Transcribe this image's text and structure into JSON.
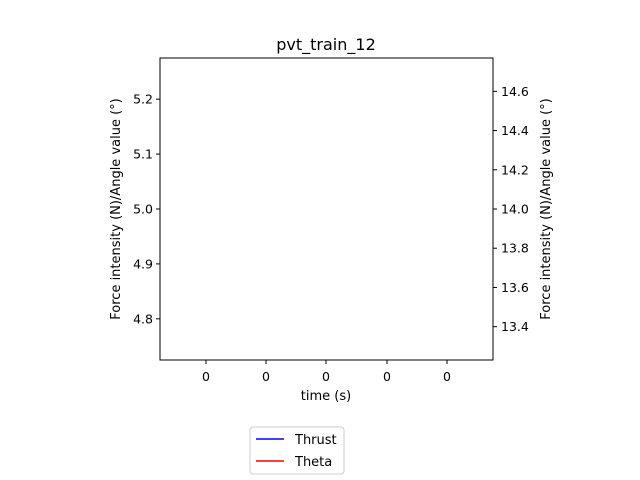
{
  "chart_data": {
    "type": "line",
    "title": "pvt_train_12",
    "xlabel": "time (s)",
    "ylabel_left": "Force intensity (N)/Angle value (°)",
    "ylabel_right": "Force intensity (N)/Angle value (°)",
    "x_tick_labels": [
      "0",
      "0",
      "0",
      "0",
      "0"
    ],
    "left_y_ticks": [
      5.2,
      5.1,
      5.0,
      4.9,
      4.8
    ],
    "left_y_tick_labels": [
      "5.2",
      "5.1",
      "5.0",
      "4.9",
      "4.8"
    ],
    "left_ylim": [
      4.725,
      5.275
    ],
    "right_y_ticks": [
      14.6,
      14.4,
      14.2,
      14.0,
      13.8,
      13.6,
      13.4
    ],
    "right_y_tick_labels": [
      "14.6",
      "14.4",
      "14.2",
      "14.0",
      "13.8",
      "13.6",
      "13.4"
    ],
    "right_ylim": [
      13.23,
      14.77
    ],
    "grid": false,
    "legend_position": "below",
    "series": [
      {
        "name": "Thrust",
        "color": "#0000ff",
        "axis": "left",
        "values": []
      },
      {
        "name": "Theta",
        "color": "#ff0000",
        "axis": "right",
        "values": []
      }
    ]
  }
}
